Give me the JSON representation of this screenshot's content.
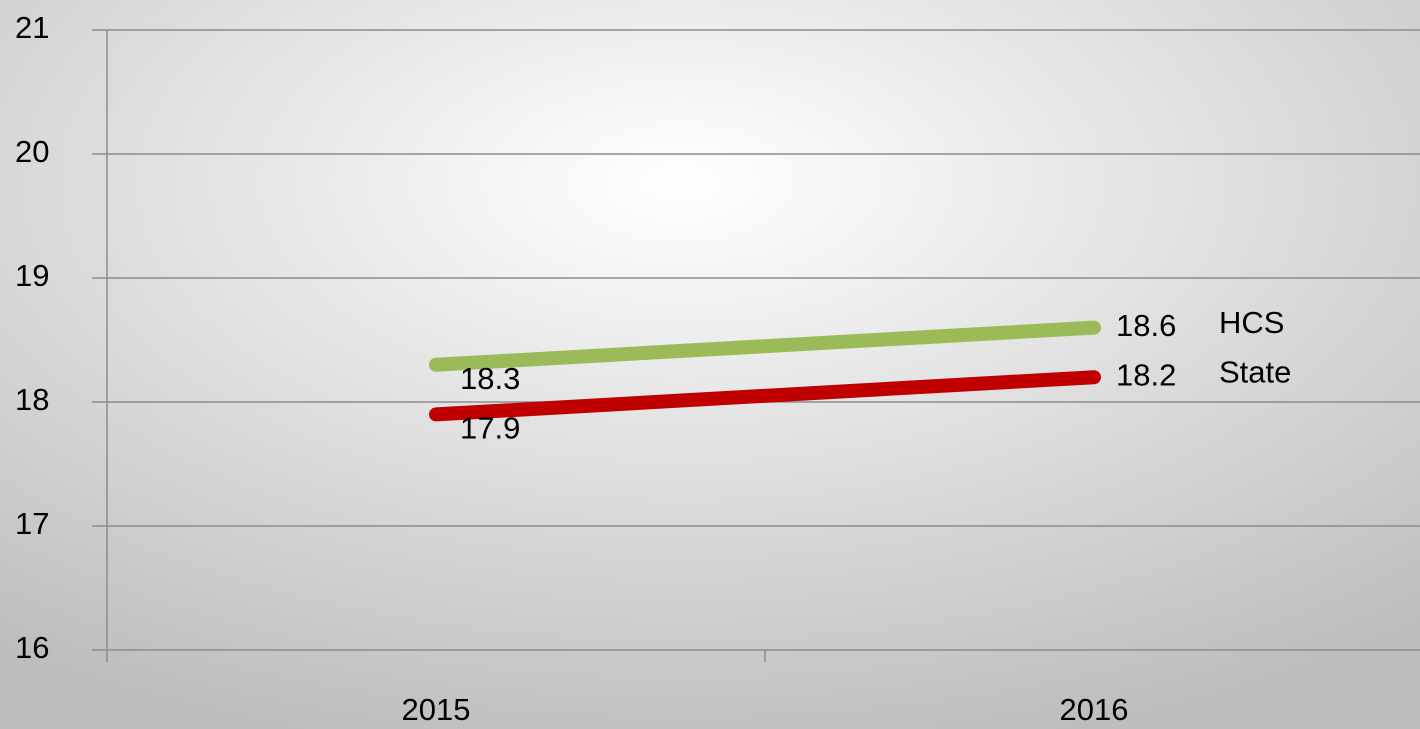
{
  "chart_data": {
    "type": "line",
    "categories": [
      "2015",
      "2016"
    ],
    "series": [
      {
        "name": "HCS",
        "color": "#9bbb59",
        "values": [
          18.3,
          18.6
        ]
      },
      {
        "name": "State",
        "color": "#c00000",
        "values": [
          17.9,
          18.2
        ]
      }
    ],
    "ylim": [
      16,
      21
    ],
    "yticks": [
      16,
      17,
      18,
      19,
      20,
      21
    ],
    "grid": true
  }
}
